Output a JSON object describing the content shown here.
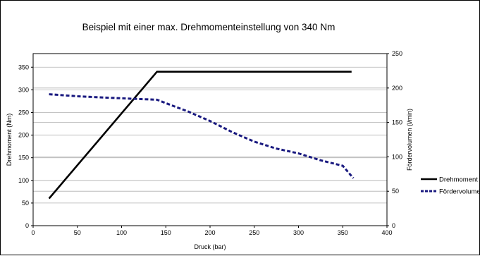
{
  "chart_data": {
    "type": "line",
    "title": "Beispiel mit einer max. Drehmomenteinstellung von 340 Nm",
    "xlabel": "Druck (bar)",
    "ylabel": "Drehmoment (Nm)",
    "y2label": "Fördervolumen (l/min)",
    "xlim": [
      0,
      400
    ],
    "ylim": [
      0,
      380
    ],
    "y2lim": [
      0,
      250
    ],
    "x_ticks": [
      0,
      50,
      100,
      150,
      200,
      250,
      300,
      350,
      400
    ],
    "y_ticks": [
      0,
      50,
      100,
      150,
      200,
      250,
      300,
      350
    ],
    "y2_ticks": [
      0,
      50,
      100,
      150,
      200,
      250
    ],
    "grid": true,
    "legend_position": "right",
    "series": [
      {
        "name": "Drehmoment",
        "axis": "left",
        "style": "solid",
        "color": "#000000",
        "x": [
          18,
          140,
          360
        ],
        "y": [
          60,
          340,
          340
        ]
      },
      {
        "name": "Fördervolumen",
        "axis": "right",
        "style": "dashed",
        "color": "#1a1a80",
        "x": [
          18,
          50,
          100,
          140,
          150,
          175,
          200,
          225,
          250,
          275,
          300,
          325,
          350,
          362
        ],
        "y": [
          191,
          188,
          185,
          183,
          178,
          166,
          152,
          136,
          122,
          112,
          105,
          95,
          87,
          69
        ]
      }
    ]
  }
}
